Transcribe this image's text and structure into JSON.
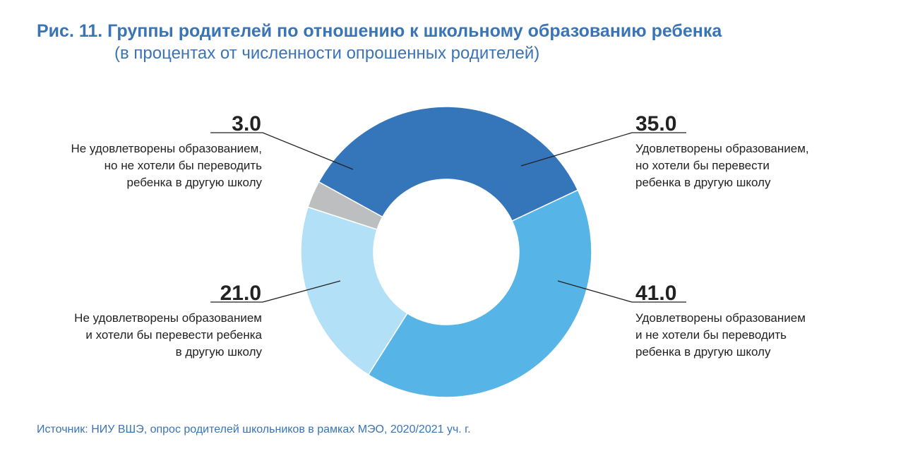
{
  "title": "Рис. 11. Группы родителей по отношению к школьному образованию ребенка",
  "subtitle": "(в процентах от численности опрошенных родителей)",
  "source": "Источник: НИУ ВШЭ, опрос родителей школьников в рамках МЭО, 2020/2021 уч. г.",
  "chart_data": {
    "type": "pie",
    "variant": "donut",
    "title": "Рис. 11. Группы родителей по отношению к школьному образованию ребенка",
    "subtitle": "(в процентах от численности опрошенных родителей)",
    "slices": [
      {
        "value": 35.0,
        "value_label": "35.0",
        "label_lines": [
          "Удовлетворены образованием,",
          "но хотели бы перевести",
          "ребенка в другую школу"
        ],
        "color": "#3576bb"
      },
      {
        "value": 41.0,
        "value_label": "41.0",
        "label_lines": [
          "Удовлетворены образованием",
          "и не хотели бы переводить",
          "ребенка в другую школу"
        ],
        "color": "#56b5e6"
      },
      {
        "value": 21.0,
        "value_label": "21.0",
        "label_lines": [
          "Не удовлетворены образованием",
          "и хотели бы перевести ребенка",
          "в другую школу"
        ],
        "color": "#b2e1f7"
      },
      {
        "value": 3.0,
        "value_label": "3.0",
        "label_lines": [
          "Не удовлетворены образованием,",
          "но не хотели бы переводить",
          "ребенка в другую школу"
        ],
        "color": "#bcbec0"
      }
    ],
    "legend": "none"
  }
}
